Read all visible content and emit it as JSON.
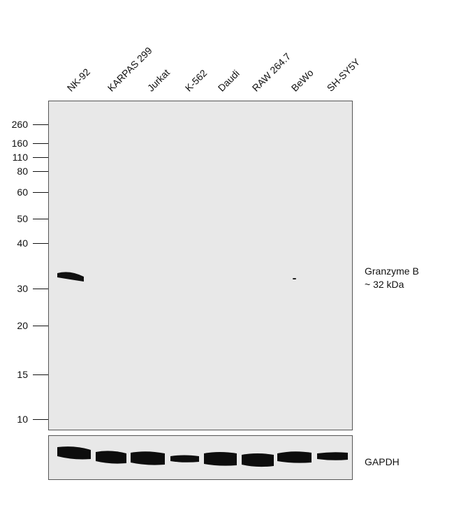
{
  "lanes": [
    "NK-92",
    "KARPAS 299",
    "Jurkat",
    "K-562",
    "Daudi",
    "RAW 264.7",
    "BeWo",
    "SH-SY5Y"
  ],
  "markers": [
    "260",
    "160",
    "110",
    "80",
    "60",
    "50",
    "40",
    "30",
    "20",
    "15",
    "10"
  ],
  "target": {
    "name": "Granzyme B",
    "size": "~ 32 kDa"
  },
  "loading_control": {
    "name": "GAPDH"
  }
}
